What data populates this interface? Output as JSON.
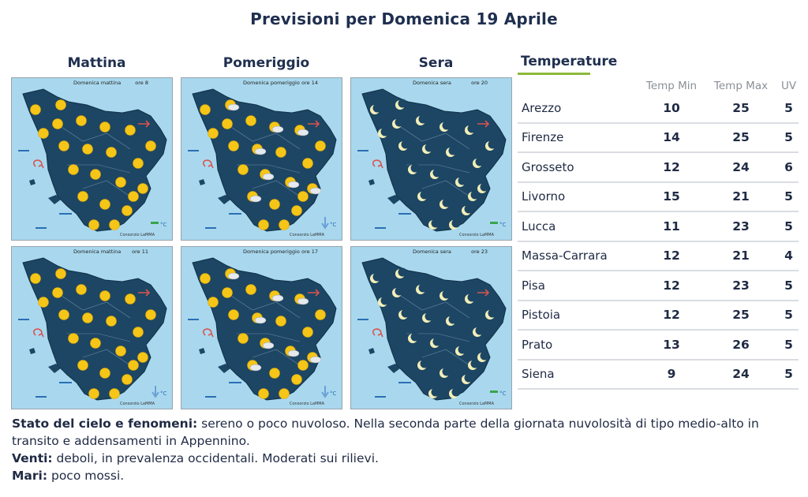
{
  "header": {
    "title": "Previsioni per Domenica 19 Aprile"
  },
  "columns": [
    {
      "label": "Mattina"
    },
    {
      "label": "Pomeriggio"
    },
    {
      "label": "Sera"
    }
  ],
  "maps": [
    {
      "caption_left": "Domenica mattina",
      "caption_right": "ore 8",
      "credit": "Consorzio LaMMA",
      "symbols": "sun",
      "temp_trend": "stable"
    },
    {
      "caption_left": "Domenica pomeriggio",
      "caption_right": "ore 14",
      "credit": "Consorzio LaMMA",
      "symbols": "sun-cloud",
      "temp_trend": "down"
    },
    {
      "caption_left": "Domenica sera",
      "caption_right": "ore 20",
      "credit": "Consorzio LaMMA",
      "symbols": "moon",
      "temp_trend": "stable"
    },
    {
      "caption_left": "Domenica mattina",
      "caption_right": "ore 11",
      "credit": "Consorzio LaMMA",
      "symbols": "sun",
      "temp_trend": "down"
    },
    {
      "caption_left": "Domenica pomeriggio",
      "caption_right": "ore 17",
      "credit": "Consorzio LaMMA",
      "symbols": "sun-cloud",
      "temp_trend": "down"
    },
    {
      "caption_left": "Domenica sera",
      "caption_right": "ore 23",
      "credit": "Consorzio LaMMA",
      "symbols": "moon",
      "temp_trend": "stable"
    }
  ],
  "temperature": {
    "title": "Temperature",
    "headers": {
      "min": "Temp Min",
      "max": "Temp Max",
      "uv": "UV"
    },
    "rows": [
      {
        "city": "Arezzo",
        "min": "10",
        "max": "25",
        "uv": "5"
      },
      {
        "city": "Firenze",
        "min": "14",
        "max": "25",
        "uv": "5"
      },
      {
        "city": "Grosseto",
        "min": "12",
        "max": "24",
        "uv": "6"
      },
      {
        "city": "Livorno",
        "min": "15",
        "max": "21",
        "uv": "5"
      },
      {
        "city": "Lucca",
        "min": "11",
        "max": "23",
        "uv": "5"
      },
      {
        "city": "Massa-Carrara",
        "min": "12",
        "max": "21",
        "uv": "4"
      },
      {
        "city": "Pisa",
        "min": "12",
        "max": "23",
        "uv": "5"
      },
      {
        "city": "Pistoia",
        "min": "12",
        "max": "25",
        "uv": "5"
      },
      {
        "city": "Prato",
        "min": "13",
        "max": "26",
        "uv": "5"
      },
      {
        "city": "Siena",
        "min": "9",
        "max": "24",
        "uv": "5"
      }
    ]
  },
  "description": {
    "sky_label": "Stato del cielo e fenomeni:",
    "sky_text": " sereno o poco nuvoloso. Nella seconda parte della giornata nuvolosità di tipo medio-alto in transito e addensamenti in Appennino.",
    "wind_label": "Venti:",
    "wind_text": " deboli, in prevalenza occidentali. Moderati sui rilievi.",
    "sea_label": "Mari:",
    "sea_text": " poco mossi."
  },
  "colors": {
    "sea": "#a9d8ee",
    "land": "#1d4664",
    "sun": "#f5c518",
    "moon": "#f3efb8",
    "accent": "#8cb83a"
  }
}
